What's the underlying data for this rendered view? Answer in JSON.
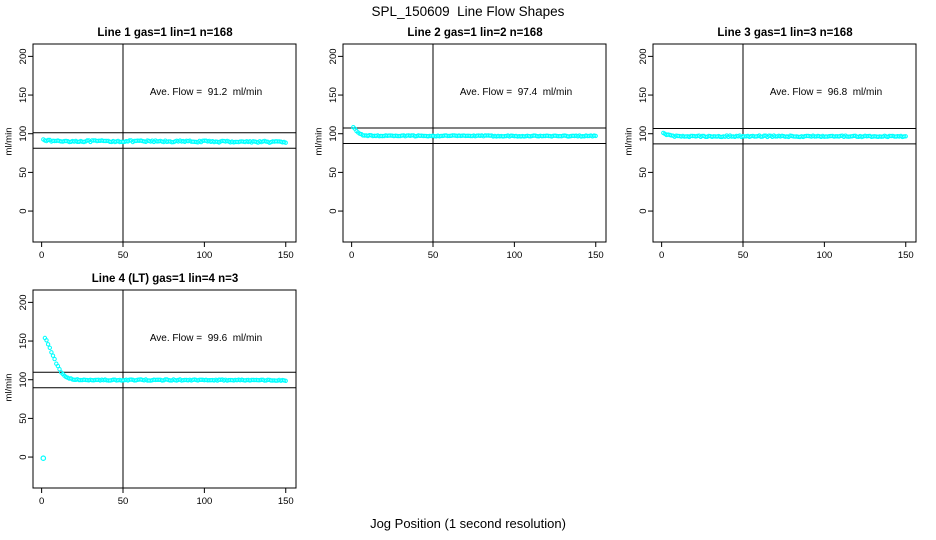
{
  "page": {
    "title": "SPL_150609  Line Flow Shapes",
    "xlabel": "Jog Position (1 second resolution)",
    "background": "#ffffff"
  },
  "colors": {
    "points": "#00ffff",
    "axis": "#000000",
    "text": "#000000"
  },
  "chart_data": [
    {
      "type": "scatter",
      "title": "Line 1 gas=1 lin=1 n=168",
      "annotation": "Ave. Flow =  91.2  ml/min",
      "ave_flow": 91.2,
      "ylabel": "ml/min",
      "xlim": [
        -5.3,
        156.3
      ],
      "ylim": [
        -40,
        216
      ],
      "xticks": [
        0,
        50,
        100,
        150
      ],
      "yticks": [
        0,
        50,
        100,
        150,
        200
      ],
      "hlines": [
        101.2,
        81.2
      ],
      "vline": 50,
      "marker": "open-circle",
      "annotation_pos": [
        101,
        152
      ],
      "series": {
        "name": "flow",
        "x_start": 1,
        "x_end": 150,
        "noise": 1.1,
        "anchors": [
          [
            1,
            93.5
          ],
          [
            2,
            92.2
          ],
          [
            4,
            91.0
          ],
          [
            8,
            90.5
          ],
          [
            20,
            90.3
          ],
          [
            50,
            90.2
          ],
          [
            90,
            90.0
          ],
          [
            120,
            89.8
          ],
          [
            150,
            89.3
          ]
        ]
      },
      "outliers": []
    },
    {
      "type": "scatter",
      "title": "Line 2 gas=1 lin=2 n=168",
      "annotation": "Ave. Flow =  97.4  ml/min",
      "ave_flow": 97.4,
      "ylabel": "ml/min",
      "xlim": [
        -5.3,
        156.3
      ],
      "ylim": [
        -40,
        216
      ],
      "xticks": [
        0,
        50,
        100,
        150
      ],
      "yticks": [
        0,
        50,
        100,
        150,
        200
      ],
      "hlines": [
        107.4,
        87.4
      ],
      "vline": 50,
      "marker": "open-circle",
      "annotation_pos": [
        101,
        152
      ],
      "series": {
        "name": "flow",
        "x_start": 1,
        "x_end": 150,
        "noise": 0.6,
        "anchors": [
          [
            1,
            108.0
          ],
          [
            2,
            106.0
          ],
          [
            3,
            103.5
          ],
          [
            4,
            101.5
          ],
          [
            5,
            100.0
          ],
          [
            6,
            99.0
          ],
          [
            7,
            98.3
          ],
          [
            9,
            97.7
          ],
          [
            12,
            97.4
          ],
          [
            20,
            97.3
          ],
          [
            60,
            97.2
          ],
          [
            150,
            97.0
          ]
        ]
      },
      "outliers": []
    },
    {
      "type": "scatter",
      "title": "Line 3 gas=1 lin=3 n=168",
      "annotation": "Ave. Flow =  96.8  ml/min",
      "ave_flow": 96.8,
      "ylabel": "ml/min",
      "xlim": [
        -5.3,
        156.3
      ],
      "ylim": [
        -40,
        216
      ],
      "xticks": [
        0,
        50,
        100,
        150
      ],
      "yticks": [
        0,
        50,
        100,
        150,
        200
      ],
      "hlines": [
        106.8,
        86.8
      ],
      "vline": 50,
      "marker": "open-circle",
      "annotation_pos": [
        101,
        152
      ],
      "series": {
        "name": "flow",
        "x_start": 1,
        "x_end": 150,
        "noise": 0.9,
        "anchors": [
          [
            1,
            100.8
          ],
          [
            2,
            99.6
          ],
          [
            3,
            98.6
          ],
          [
            5,
            97.5
          ],
          [
            8,
            97.0
          ],
          [
            15,
            96.8
          ],
          [
            60,
            96.7
          ],
          [
            150,
            96.6
          ]
        ]
      },
      "outliers": []
    },
    {
      "type": "scatter",
      "title": "Line 4 (LT) gas=1 lin=4 n=3",
      "annotation": "Ave. Flow =  99.6  ml/min",
      "ave_flow": 99.6,
      "ylabel": "ml/min",
      "xlim": [
        -5.3,
        156.3
      ],
      "ylim": [
        -40,
        216
      ],
      "xticks": [
        0,
        50,
        100,
        150
      ],
      "yticks": [
        0,
        50,
        100,
        150,
        200
      ],
      "hlines": [
        109.6,
        89.6
      ],
      "vline": 50,
      "marker": "open-circle",
      "annotation_pos": [
        101,
        152
      ],
      "series": {
        "name": "flow",
        "x_start": 2,
        "x_end": 150,
        "noise": 0.7,
        "anchors": [
          [
            2,
            154
          ],
          [
            3,
            151
          ],
          [
            4,
            146.5
          ],
          [
            5,
            141
          ],
          [
            6,
            136
          ],
          [
            7,
            131
          ],
          [
            8,
            126
          ],
          [
            9,
            121
          ],
          [
            10,
            117
          ],
          [
            11,
            113
          ],
          [
            12,
            110
          ],
          [
            13,
            107.5
          ],
          [
            14,
            105.5
          ],
          [
            15,
            103.8
          ],
          [
            16,
            102.6
          ],
          [
            17,
            101.7
          ],
          [
            18,
            101.0
          ],
          [
            20,
            100.3
          ],
          [
            23,
            99.8
          ],
          [
            26,
            99.6
          ],
          [
            30,
            99.5
          ],
          [
            50,
            99.6
          ],
          [
            80,
            99.6
          ],
          [
            120,
            99.4
          ],
          [
            150,
            99.2
          ]
        ]
      },
      "outliers": [
        [
          1,
          -1.5
        ]
      ]
    }
  ]
}
